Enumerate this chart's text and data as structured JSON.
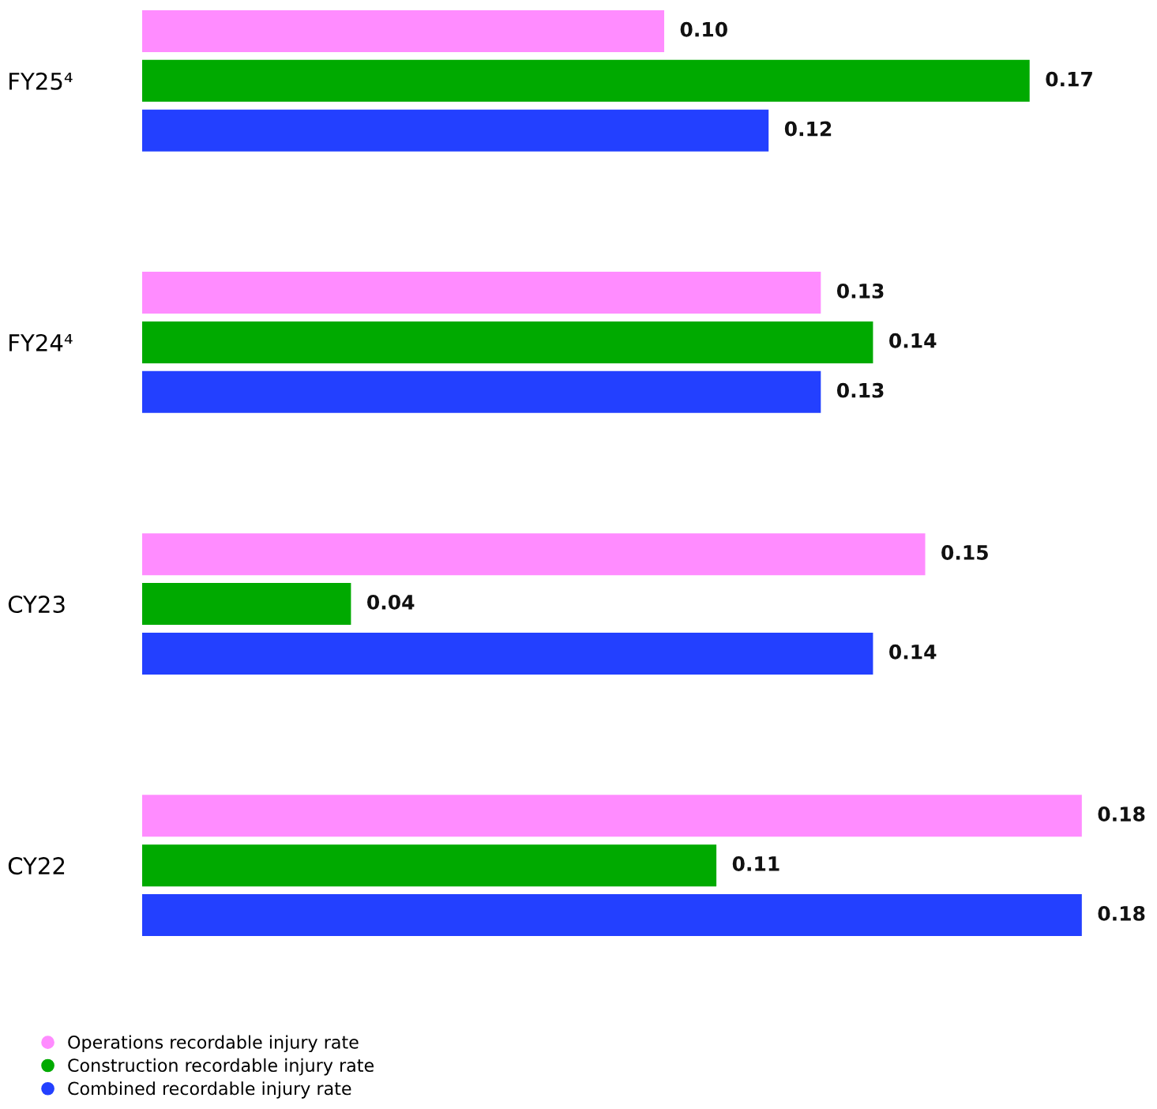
{
  "chart_data": {
    "type": "bar",
    "orientation": "horizontal",
    "categories": [
      "FY25⁴",
      "FY24⁴",
      "CY23",
      "CY22"
    ],
    "series": [
      {
        "name": "Operations recordable injury rate",
        "color": "#ff8cff",
        "values": [
          0.1,
          0.13,
          0.15,
          0.18
        ],
        "value_labels": [
          "0.10",
          "0.13",
          "0.15",
          "0.18"
        ]
      },
      {
        "name": "Construction recordable injury rate",
        "color": "#00aa00",
        "values": [
          0.17,
          0.14,
          0.04,
          0.11
        ],
        "value_labels": [
          "0.17",
          "0.14",
          "0.04",
          "0.11"
        ]
      },
      {
        "name": "Combined recordable injury rate",
        "color": "#2340ff",
        "values": [
          0.12,
          0.13,
          0.14,
          0.18
        ],
        "value_labels": [
          "0.12",
          "0.13",
          "0.14",
          "0.18"
        ]
      }
    ],
    "legend": "bottom",
    "marker": "circle",
    "grid": false
  }
}
